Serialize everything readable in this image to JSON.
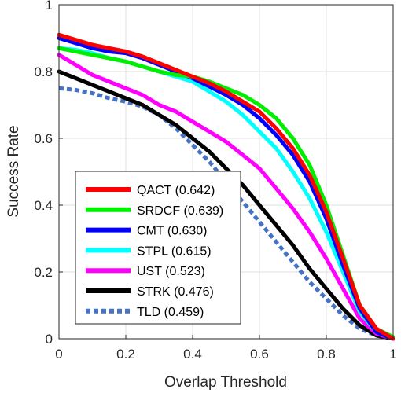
{
  "chart_data": {
    "type": "line",
    "title": "",
    "xlabel": "Overlap Threshold",
    "ylabel": "Success Rate",
    "xlim": [
      0,
      1
    ],
    "ylim": [
      0,
      1
    ],
    "x_ticks": [
      "0",
      "0.2",
      "0.4",
      "0.6",
      "0.8",
      "1"
    ],
    "y_ticks": [
      "0",
      "0.2",
      "0.4",
      "0.6",
      "0.8",
      "1"
    ],
    "grid": true,
    "legend_position": "bottom-left",
    "x": [
      0,
      0.05,
      0.1,
      0.15,
      0.2,
      0.25,
      0.3,
      0.35,
      0.4,
      0.45,
      0.5,
      0.55,
      0.6,
      0.65,
      0.7,
      0.75,
      0.8,
      0.85,
      0.9,
      0.95,
      1.0
    ],
    "series": [
      {
        "name": "QACT (0.642)",
        "color": "#ff0000",
        "style": "solid",
        "values": [
          0.91,
          0.895,
          0.88,
          0.87,
          0.86,
          0.845,
          0.825,
          0.805,
          0.785,
          0.765,
          0.74,
          0.71,
          0.68,
          0.63,
          0.57,
          0.49,
          0.38,
          0.24,
          0.1,
          0.03,
          0.0
        ]
      },
      {
        "name": "SRDCF (0.639)",
        "color": "#00ee00",
        "style": "solid",
        "values": [
          0.87,
          0.86,
          0.85,
          0.84,
          0.83,
          0.815,
          0.8,
          0.79,
          0.785,
          0.77,
          0.75,
          0.73,
          0.7,
          0.66,
          0.6,
          0.52,
          0.4,
          0.25,
          0.1,
          0.03,
          0.005
        ]
      },
      {
        "name": "CMT (0.630)",
        "color": "#0000ff",
        "style": "solid",
        "values": [
          0.9,
          0.885,
          0.87,
          0.86,
          0.855,
          0.84,
          0.82,
          0.8,
          0.78,
          0.755,
          0.73,
          0.7,
          0.66,
          0.61,
          0.55,
          0.47,
          0.36,
          0.22,
          0.09,
          0.02,
          0.0
        ]
      },
      {
        "name": "STPL (0.615)",
        "color": "#00ffff",
        "style": "solid",
        "values": [
          0.87,
          0.865,
          0.855,
          0.84,
          0.83,
          0.815,
          0.8,
          0.785,
          0.77,
          0.74,
          0.71,
          0.67,
          0.62,
          0.57,
          0.5,
          0.42,
          0.32,
          0.2,
          0.08,
          0.02,
          0.0
        ]
      },
      {
        "name": "UST (0.523)",
        "color": "#ff00ff",
        "style": "solid",
        "values": [
          0.85,
          0.82,
          0.79,
          0.77,
          0.75,
          0.73,
          0.7,
          0.68,
          0.65,
          0.62,
          0.59,
          0.55,
          0.51,
          0.45,
          0.39,
          0.32,
          0.24,
          0.15,
          0.06,
          0.015,
          0.0
        ]
      },
      {
        "name": "STRK (0.476)",
        "color": "#000000",
        "style": "solid",
        "values": [
          0.8,
          0.78,
          0.76,
          0.74,
          0.72,
          0.7,
          0.67,
          0.64,
          0.6,
          0.56,
          0.51,
          0.46,
          0.4,
          0.34,
          0.28,
          0.21,
          0.15,
          0.09,
          0.04,
          0.01,
          0.0
        ]
      },
      {
        "name": "TLD (0.459)",
        "color": "#4472c4",
        "style": "dotted",
        "values": [
          0.75,
          0.745,
          0.735,
          0.72,
          0.71,
          0.695,
          0.67,
          0.63,
          0.58,
          0.53,
          0.47,
          0.41,
          0.35,
          0.29,
          0.23,
          0.17,
          0.12,
          0.07,
          0.03,
          0.01,
          0.0
        ]
      }
    ]
  }
}
